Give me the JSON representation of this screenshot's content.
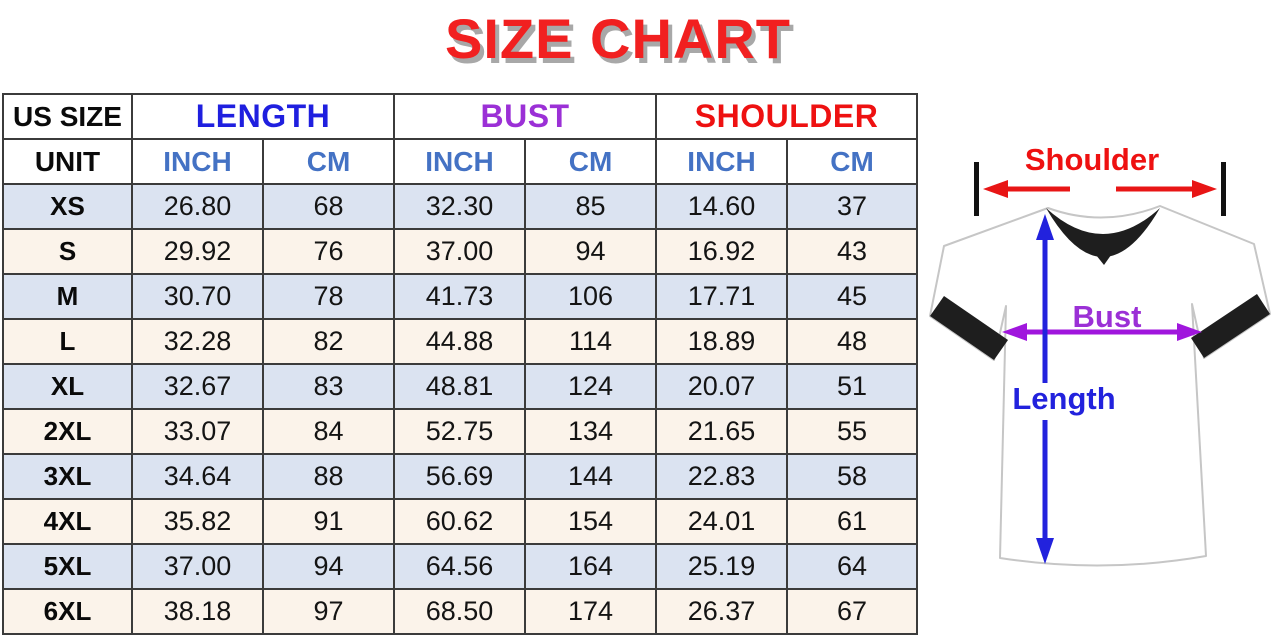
{
  "title": "SIZE CHART",
  "chart_data": {
    "type": "table",
    "title": "SIZE CHART",
    "corner_label": "US SIZE",
    "groups": [
      {
        "label": "LENGTH",
        "color": "#1f1fdf"
      },
      {
        "label": "BUST",
        "color": "#9b30d6"
      },
      {
        "label": "SHOULDER",
        "color": "#ee1111"
      }
    ],
    "unit_row": [
      "UNIT",
      "INCH",
      "CM",
      "INCH",
      "CM",
      "INCH",
      "CM"
    ],
    "rows": [
      {
        "size": "XS",
        "values": [
          "26.80",
          "68",
          "32.30",
          "85",
          "14.60",
          "37"
        ]
      },
      {
        "size": "S",
        "values": [
          "29.92",
          "76",
          "37.00",
          "94",
          "16.92",
          "43"
        ]
      },
      {
        "size": "M",
        "values": [
          "30.70",
          "78",
          "41.73",
          "106",
          "17.71",
          "45"
        ]
      },
      {
        "size": "L",
        "values": [
          "32.28",
          "82",
          "44.88",
          "114",
          "18.89",
          "48"
        ]
      },
      {
        "size": "XL",
        "values": [
          "32.67",
          "83",
          "48.81",
          "124",
          "20.07",
          "51"
        ]
      },
      {
        "size": "2XL",
        "values": [
          "33.07",
          "84",
          "52.75",
          "134",
          "21.65",
          "55"
        ]
      },
      {
        "size": "3XL",
        "values": [
          "34.64",
          "88",
          "56.69",
          "144",
          "22.83",
          "58"
        ]
      },
      {
        "size": "4XL",
        "values": [
          "35.82",
          "91",
          "60.62",
          "154",
          "24.01",
          "61"
        ]
      },
      {
        "size": "5XL",
        "values": [
          "37.00",
          "94",
          "64.56",
          "164",
          "25.19",
          "64"
        ]
      },
      {
        "size": "6XL",
        "values": [
          "38.18",
          "97",
          "68.50",
          "174",
          "26.37",
          "67"
        ]
      }
    ]
  },
  "diagram": {
    "shoulder_label": "Shoulder",
    "bust_label": "Bust",
    "length_label": "Length"
  },
  "colors": {
    "title_red": "#f12020",
    "title_shadow": "#a8a8a8",
    "length_blue": "#1f1fdf",
    "bust_purple": "#9b30d6",
    "shoulder_red": "#ee1111",
    "unit_blue": "#4472c4",
    "row_blue": "#dbe3f1",
    "row_cream": "#fbf3ea",
    "border": "#3b3b3b",
    "arrow_red": "#e81515",
    "arrow_purple": "#a016dd",
    "arrow_blue": "#2222dd",
    "shirt_dark": "#1e1e1e",
    "shirt_outline": "#c6c6c6"
  }
}
